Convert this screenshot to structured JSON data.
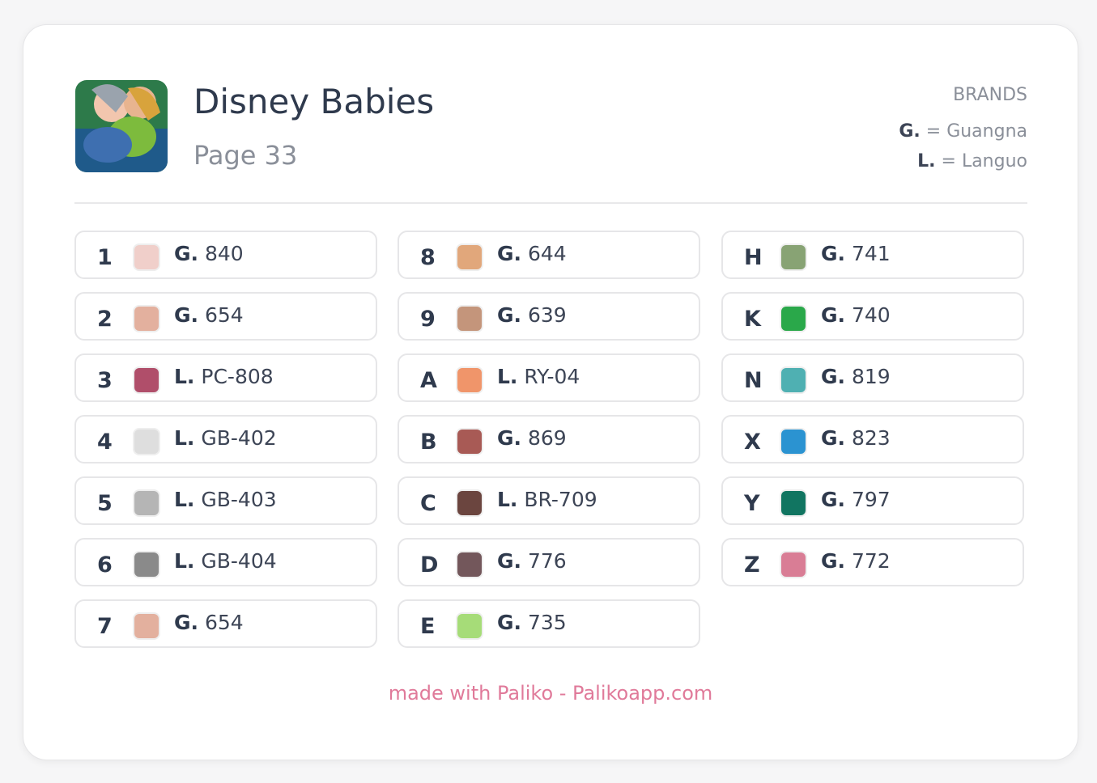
{
  "header": {
    "title": "Disney Babies",
    "subtitle": "Page 33"
  },
  "brands": {
    "heading": "BRANDS",
    "entries": [
      {
        "code": "G.",
        "sep": "=",
        "name": "Guangna"
      },
      {
        "code": "L.",
        "sep": "=",
        "name": "Languo"
      }
    ]
  },
  "columns": [
    [
      {
        "label": "1",
        "color": "#f0cfca",
        "brand": "G.",
        "code": "840"
      },
      {
        "label": "2",
        "color": "#e3b09e",
        "brand": "G.",
        "code": "654"
      },
      {
        "label": "3",
        "color": "#b04e6a",
        "brand": "L.",
        "code": "PC-808"
      },
      {
        "label": "4",
        "color": "#dedede",
        "brand": "L.",
        "code": "GB-402"
      },
      {
        "label": "5",
        "color": "#b5b5b5",
        "brand": "L.",
        "code": "GB-403"
      },
      {
        "label": "6",
        "color": "#8a8a8a",
        "brand": "L.",
        "code": "GB-404"
      },
      {
        "label": "7",
        "color": "#e3b09e",
        "brand": "G.",
        "code": "654"
      }
    ],
    [
      {
        "label": "8",
        "color": "#e1a77b",
        "brand": "G.",
        "code": "644"
      },
      {
        "label": "9",
        "color": "#c4957b",
        "brand": "G.",
        "code": "639"
      },
      {
        "label": "A",
        "color": "#f0956a",
        "brand": "L.",
        "code": "RY-04"
      },
      {
        "label": "B",
        "color": "#a85a55",
        "brand": "G.",
        "code": "869"
      },
      {
        "label": "C",
        "color": "#6b453f",
        "brand": "L.",
        "code": "BR-709"
      },
      {
        "label": "D",
        "color": "#73575b",
        "brand": "G.",
        "code": "776"
      },
      {
        "label": "E",
        "color": "#a6dc78",
        "brand": "G.",
        "code": "735"
      }
    ],
    [
      {
        "label": "H",
        "color": "#88a374",
        "brand": "G.",
        "code": "741"
      },
      {
        "label": "K",
        "color": "#2aa84a",
        "brand": "G.",
        "code": "740"
      },
      {
        "label": "N",
        "color": "#4fb0b2",
        "brand": "G.",
        "code": "819"
      },
      {
        "label": "X",
        "color": "#2b93d1",
        "brand": "G.",
        "code": "823"
      },
      {
        "label": "Y",
        "color": "#117561",
        "brand": "G.",
        "code": "797"
      },
      {
        "label": "Z",
        "color": "#d97d95",
        "brand": "G.",
        "code": "772"
      }
    ]
  ],
  "footer": "made with Paliko - Palikoapp.com"
}
